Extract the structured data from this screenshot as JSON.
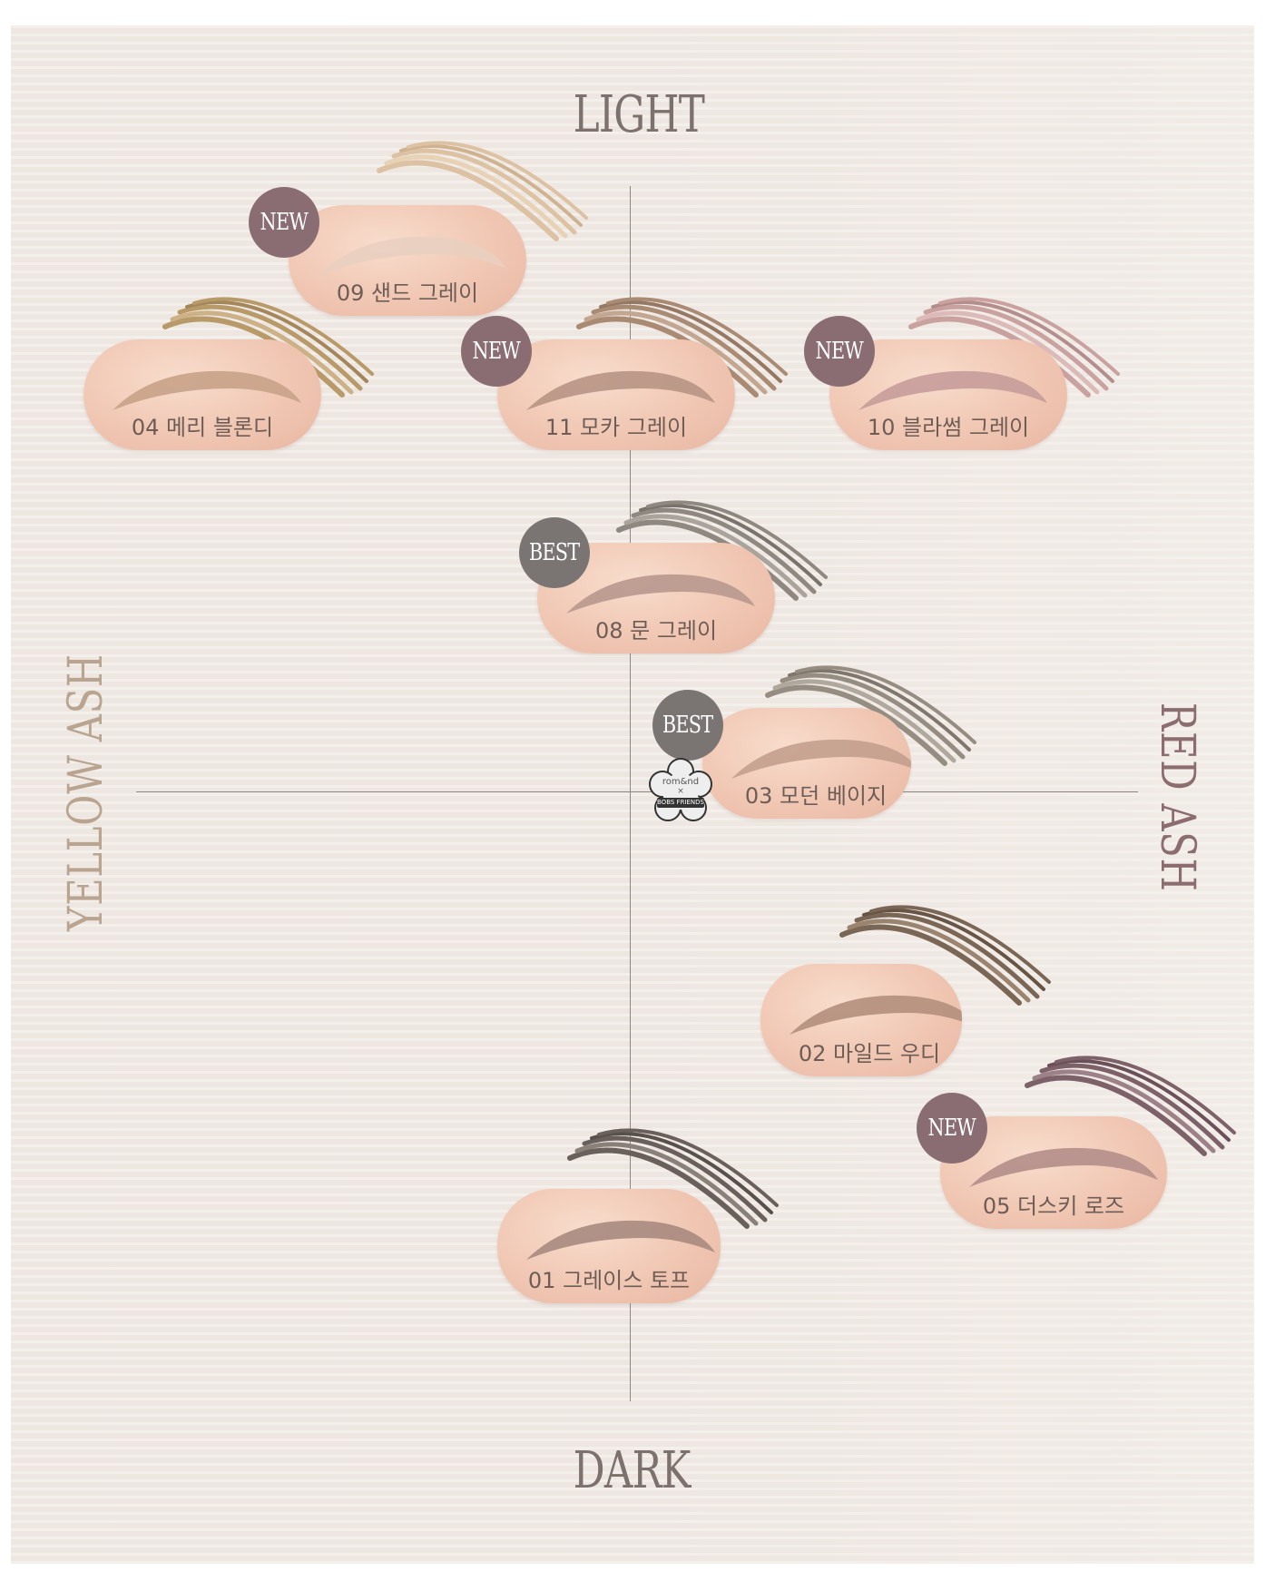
{
  "axes": {
    "top": "LIGHT",
    "bottom": "DARK",
    "left": "YELLOW ASH",
    "right": "RED ASH"
  },
  "colors": {
    "axis_text": "#7c716d",
    "left_text": "#b9a58f",
    "right_text": "#8b6d6f",
    "badge_new": "#8a6d72",
    "badge_best": "#7a7472",
    "pill": "#f0c7b3"
  },
  "collab_logo": {
    "top": "rom&nd",
    "mid": "×",
    "bottom": "BOBS FRIENDS"
  },
  "products": [
    {
      "id": "p09",
      "label": "09 샌드 그레이",
      "badge": "NEW",
      "brush_color": "#dcc2a2"
    },
    {
      "id": "p04",
      "label": "04 메리 블론디",
      "badge": "",
      "brush_color": "#b89a68"
    },
    {
      "id": "p11",
      "label": "11 모카 그레이",
      "badge": "NEW",
      "brush_color": "#a98b74"
    },
    {
      "id": "p10",
      "label": "10 블라썸 그레이",
      "badge": "NEW",
      "brush_color": "#c9a2a0"
    },
    {
      "id": "p08",
      "label": "08 문 그레이",
      "badge": "BEST",
      "brush_color": "#8f8880"
    },
    {
      "id": "p03",
      "label": "03 모던 베이지",
      "badge": "BEST",
      "brush_color": "#958d81"
    },
    {
      "id": "p02",
      "label": "02 마일드 우디",
      "badge": "",
      "brush_color": "#7a6654"
    },
    {
      "id": "p05",
      "label": "05 더스키 로즈",
      "badge": "NEW",
      "brush_color": "#7d6169"
    },
    {
      "id": "p01",
      "label": "01 그레이스 토프",
      "badge": "",
      "brush_color": "#6a605b"
    }
  ]
}
